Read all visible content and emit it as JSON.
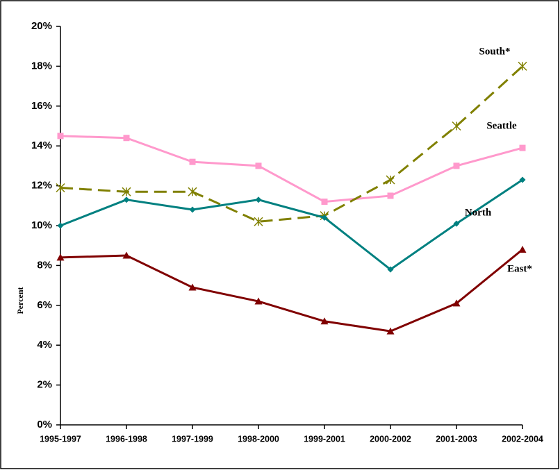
{
  "chart_data": {
    "type": "line",
    "categories": [
      "1995-1997",
      "1996-1998",
      "1997-1999",
      "1998-2000",
      "1999-2001",
      "2000-2002",
      "2001-2003",
      "2002-2004"
    ],
    "y_label": "Percent",
    "ylim": [
      0,
      20
    ],
    "yticks": [
      {
        "value": 0,
        "label": "0%"
      },
      {
        "value": 2,
        "label": "2%"
      },
      {
        "value": 4,
        "label": "4%"
      },
      {
        "value": 6,
        "label": "6%"
      },
      {
        "value": 8,
        "label": "8%"
      },
      {
        "value": 10,
        "label": "10%"
      },
      {
        "value": 12,
        "label": "12%"
      },
      {
        "value": 14,
        "label": "14%"
      },
      {
        "value": 16,
        "label": "16%"
      },
      {
        "value": 18,
        "label": "18%"
      },
      {
        "value": 20,
        "label": "20%"
      }
    ],
    "grid": false,
    "series": [
      {
        "name": "Seattle",
        "color": "#ff99cc",
        "marker": "square",
        "dashed": false,
        "values": [
          14.5,
          14.4,
          13.2,
          13.0,
          11.2,
          11.5,
          13.0,
          13.9
        ]
      },
      {
        "name": "South*",
        "color": "#808000",
        "marker": "asterisk",
        "dashed": true,
        "values": [
          11.9,
          11.7,
          11.7,
          10.2,
          10.5,
          12.3,
          15.0,
          18.0
        ]
      },
      {
        "name": "North",
        "color": "#008080",
        "marker": "diamond",
        "dashed": false,
        "values": [
          10.0,
          11.3,
          10.8,
          11.3,
          10.4,
          7.8,
          10.1,
          12.3
        ]
      },
      {
        "name": "East*",
        "color": "#800000",
        "marker": "triangle",
        "dashed": false,
        "values": [
          8.4,
          8.5,
          6.9,
          6.2,
          5.2,
          4.7,
          6.1,
          8.8
        ]
      }
    ]
  }
}
